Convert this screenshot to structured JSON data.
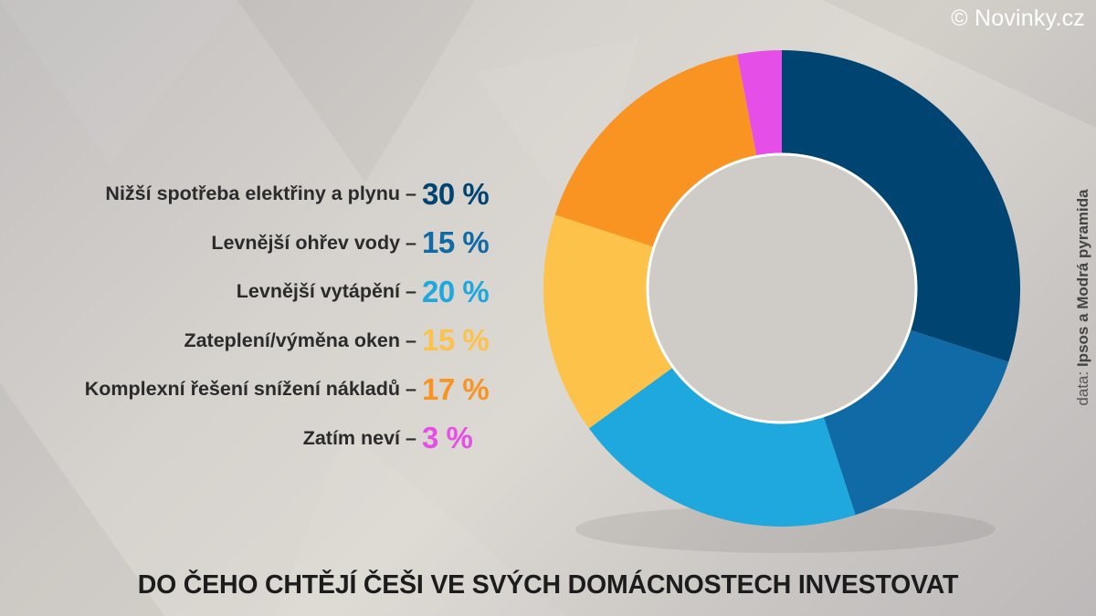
{
  "copyright": "© Novinky.cz",
  "source_prefix": "data: ",
  "source_name": "Ipsos a Modrá pyramida",
  "chart_data": {
    "type": "pie",
    "title": "DO ČEHO CHTĚJÍ ČEŠI VE SVÝCH DOMÁCNOSTECH INVESTOVAT",
    "unit": "%",
    "slices": [
      {
        "label": "Nižší spotřeba elektřiny a plynu",
        "value": 30,
        "display": "30 %",
        "color": "#004572"
      },
      {
        "label": "Levnější ohřev vody",
        "value": 15,
        "display": "15 %",
        "color": "#0f6aa6"
      },
      {
        "label": "Levnější vytápění",
        "value": 20,
        "display": "20 %",
        "color": "#1ea8de"
      },
      {
        "label": "Zateplení/výměna oken",
        "value": 15,
        "display": "15 %",
        "color": "#fcc24a"
      },
      {
        "label": "Komplexní řešení snížení nákladů",
        "value": 17,
        "display": "17 %",
        "color": "#f99322"
      },
      {
        "label": "Zatím neví",
        "value": 3,
        "display": "3 %",
        "color": "#e64ee8"
      }
    ]
  }
}
